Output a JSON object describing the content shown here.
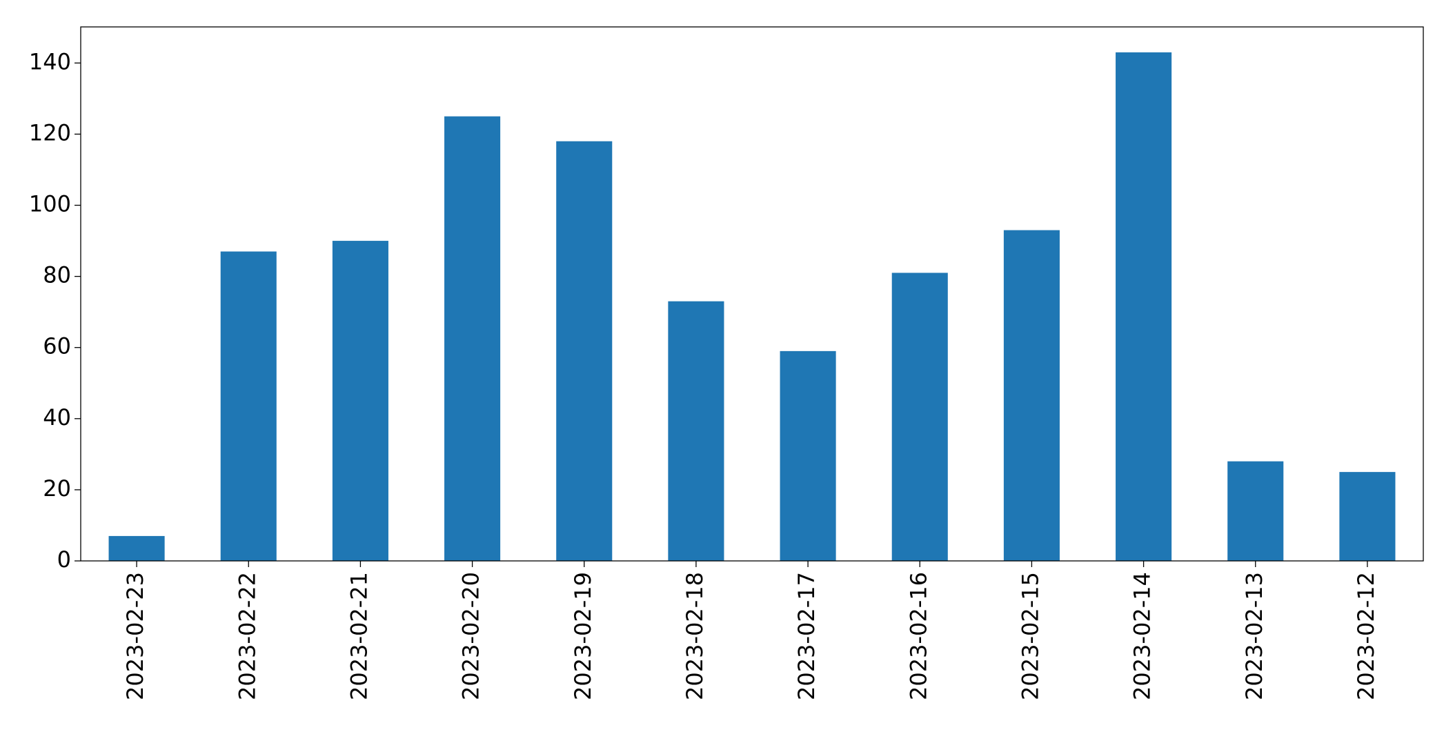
{
  "chart_data": {
    "type": "bar",
    "categories": [
      "2023-02-23",
      "2023-02-22",
      "2023-02-21",
      "2023-02-20",
      "2023-02-19",
      "2023-02-18",
      "2023-02-17",
      "2023-02-16",
      "2023-02-15",
      "2023-02-14",
      "2023-02-13",
      "2023-02-12"
    ],
    "values": [
      7,
      87,
      90,
      125,
      118,
      73,
      59,
      81,
      93,
      143,
      28,
      25
    ],
    "color": "#1f77b4",
    "ylim": [
      0,
      150.15
    ],
    "yticks": [
      0,
      20,
      40,
      60,
      80,
      100,
      120,
      140
    ],
    "grid": false
  }
}
